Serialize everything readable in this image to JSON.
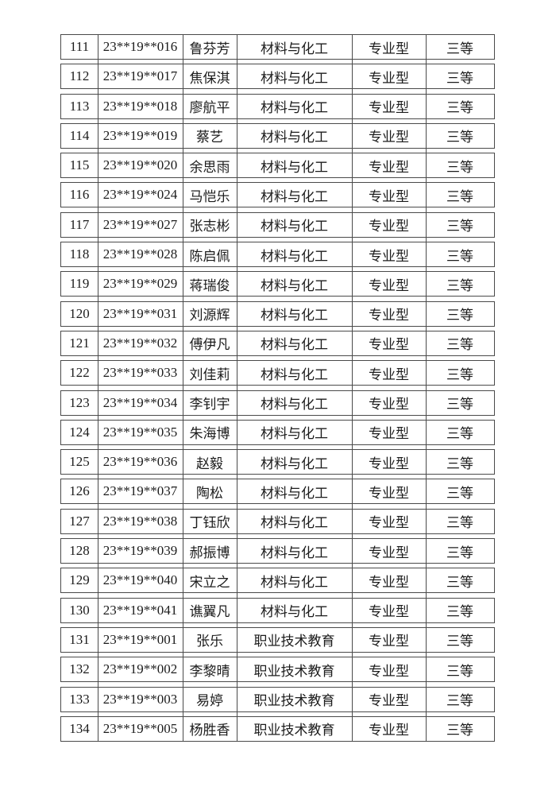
{
  "document": {
    "rows": [
      [
        "111",
        "23**19**016",
        "鲁芬芳",
        "材料与化工",
        "专业型",
        "三等"
      ],
      [
        "112",
        "23**19**017",
        "焦保淇",
        "材料与化工",
        "专业型",
        "三等"
      ],
      [
        "113",
        "23**19**018",
        "廖航平",
        "材料与化工",
        "专业型",
        "三等"
      ],
      [
        "114",
        "23**19**019",
        "蔡艺",
        "材料与化工",
        "专业型",
        "三等"
      ],
      [
        "115",
        "23**19**020",
        "余思雨",
        "材料与化工",
        "专业型",
        "三等"
      ],
      [
        "116",
        "23**19**024",
        "马恺乐",
        "材料与化工",
        "专业型",
        "三等"
      ],
      [
        "117",
        "23**19**027",
        "张志彬",
        "材料与化工",
        "专业型",
        "三等"
      ],
      [
        "118",
        "23**19**028",
        "陈启佩",
        "材料与化工",
        "专业型",
        "三等"
      ],
      [
        "119",
        "23**19**029",
        "蒋瑞俊",
        "材料与化工",
        "专业型",
        "三等"
      ],
      [
        "120",
        "23**19**031",
        "刘源辉",
        "材料与化工",
        "专业型",
        "三等"
      ],
      [
        "121",
        "23**19**032",
        "傅伊凡",
        "材料与化工",
        "专业型",
        "三等"
      ],
      [
        "122",
        "23**19**033",
        "刘佳莉",
        "材料与化工",
        "专业型",
        "三等"
      ],
      [
        "123",
        "23**19**034",
        "李钊宇",
        "材料与化工",
        "专业型",
        "三等"
      ],
      [
        "124",
        "23**19**035",
        "朱海博",
        "材料与化工",
        "专业型",
        "三等"
      ],
      [
        "125",
        "23**19**036",
        "赵毅",
        "材料与化工",
        "专业型",
        "三等"
      ],
      [
        "126",
        "23**19**037",
        "陶松",
        "材料与化工",
        "专业型",
        "三等"
      ],
      [
        "127",
        "23**19**038",
        "丁钰欣",
        "材料与化工",
        "专业型",
        "三等"
      ],
      [
        "128",
        "23**19**039",
        "郝振博",
        "材料与化工",
        "专业型",
        "三等"
      ],
      [
        "129",
        "23**19**040",
        "宋立之",
        "材料与化工",
        "专业型",
        "三等"
      ],
      [
        "130",
        "23**19**041",
        "谯翼凡",
        "材料与化工",
        "专业型",
        "三等"
      ],
      [
        "131",
        "23**19**001",
        "张乐",
        "职业技术教育",
        "专业型",
        "三等"
      ],
      [
        "132",
        "23**19**002",
        "李黎晴",
        "职业技术教育",
        "专业型",
        "三等"
      ],
      [
        "133",
        "23**19**003",
        "易婷",
        "职业技术教育",
        "专业型",
        "三等"
      ],
      [
        "134",
        "23**19**005",
        "杨胜香",
        "职业技术教育",
        "专业型",
        "三等"
      ]
    ],
    "line_color": "#4a4a4a",
    "text_color": "#1c1c1c"
  }
}
